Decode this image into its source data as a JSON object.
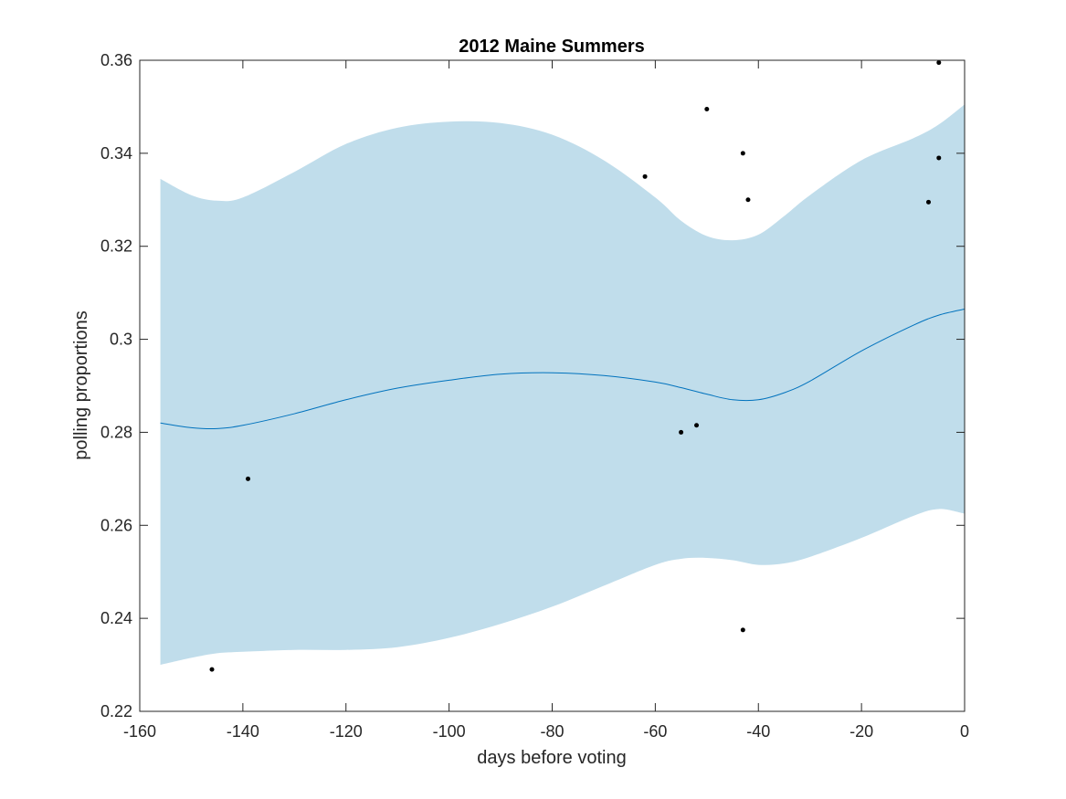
{
  "chart_data": {
    "type": "scatter",
    "title": "2012 Maine Summers",
    "xlabel": "days before voting",
    "ylabel": "polling proportions",
    "xlim": [
      -160,
      0
    ],
    "ylim": [
      0.22,
      0.36
    ],
    "xticks": [
      -160,
      -140,
      -120,
      -100,
      -80,
      -60,
      -40,
      -20,
      0
    ],
    "xtick_labels": [
      "-160",
      "-140",
      "-120",
      "-100",
      "-80",
      "-60",
      "-40",
      "-20",
      "0"
    ],
    "yticks": [
      0.22,
      0.24,
      0.26,
      0.28,
      0.3,
      0.32,
      0.34,
      0.36
    ],
    "ytick_labels": [
      "0.22",
      "0.24",
      "0.26",
      "0.28",
      "0.3",
      "0.32",
      "0.34",
      "0.36"
    ],
    "grid": false,
    "legend": "none",
    "series": [
      {
        "kind": "scatter",
        "color": "#000000",
        "points": [
          {
            "x": -146,
            "y": 0.229
          },
          {
            "x": -139,
            "y": 0.27
          },
          {
            "x": -62,
            "y": 0.335
          },
          {
            "x": -55,
            "y": 0.28
          },
          {
            "x": -52,
            "y": 0.2815
          },
          {
            "x": -50,
            "y": 0.3495
          },
          {
            "x": -43,
            "y": 0.34
          },
          {
            "x": -43,
            "y": 0.2375
          },
          {
            "x": -42,
            "y": 0.33
          },
          {
            "x": -7,
            "y": 0.3295
          },
          {
            "x": -5,
            "y": 0.3595
          },
          {
            "x": -5,
            "y": 0.339
          }
        ]
      },
      {
        "kind": "line",
        "color": "#0072BD",
        "x": [
          -156,
          -150,
          -145,
          -140,
          -130,
          -120,
          -110,
          -100,
          -90,
          -80,
          -70,
          -60,
          -55,
          -50,
          -45,
          -40,
          -35,
          -30,
          -20,
          -10,
          -5,
          0
        ],
        "y": [
          0.282,
          0.281,
          0.2808,
          0.2815,
          0.284,
          0.287,
          0.2895,
          0.2912,
          0.2925,
          0.2928,
          0.2922,
          0.2908,
          0.2896,
          0.2882,
          0.287,
          0.287,
          0.2885,
          0.291,
          0.2975,
          0.303,
          0.3052,
          0.3065
        ]
      },
      {
        "kind": "band",
        "color": "#C0DDEB",
        "x": [
          -156,
          -150,
          -145,
          -140,
          -130,
          -120,
          -110,
          -100,
          -90,
          -80,
          -70,
          -60,
          -55,
          -50,
          -45,
          -40,
          -35,
          -30,
          -20,
          -10,
          -5,
          0
        ],
        "upper": [
          0.3345,
          0.331,
          0.3298,
          0.3305,
          0.336,
          0.342,
          0.3455,
          0.3468,
          0.3465,
          0.344,
          0.3385,
          0.3305,
          0.3255,
          0.3222,
          0.3213,
          0.3225,
          0.3265,
          0.331,
          0.3385,
          0.3432,
          0.3462,
          0.3505
        ],
        "lower": [
          0.23,
          0.2315,
          0.2325,
          0.2328,
          0.2332,
          0.2332,
          0.2338,
          0.2358,
          0.2388,
          0.2425,
          0.247,
          0.2515,
          0.2528,
          0.253,
          0.2525,
          0.2515,
          0.2518,
          0.2532,
          0.2573,
          0.262,
          0.2635,
          0.2625
        ]
      }
    ]
  }
}
